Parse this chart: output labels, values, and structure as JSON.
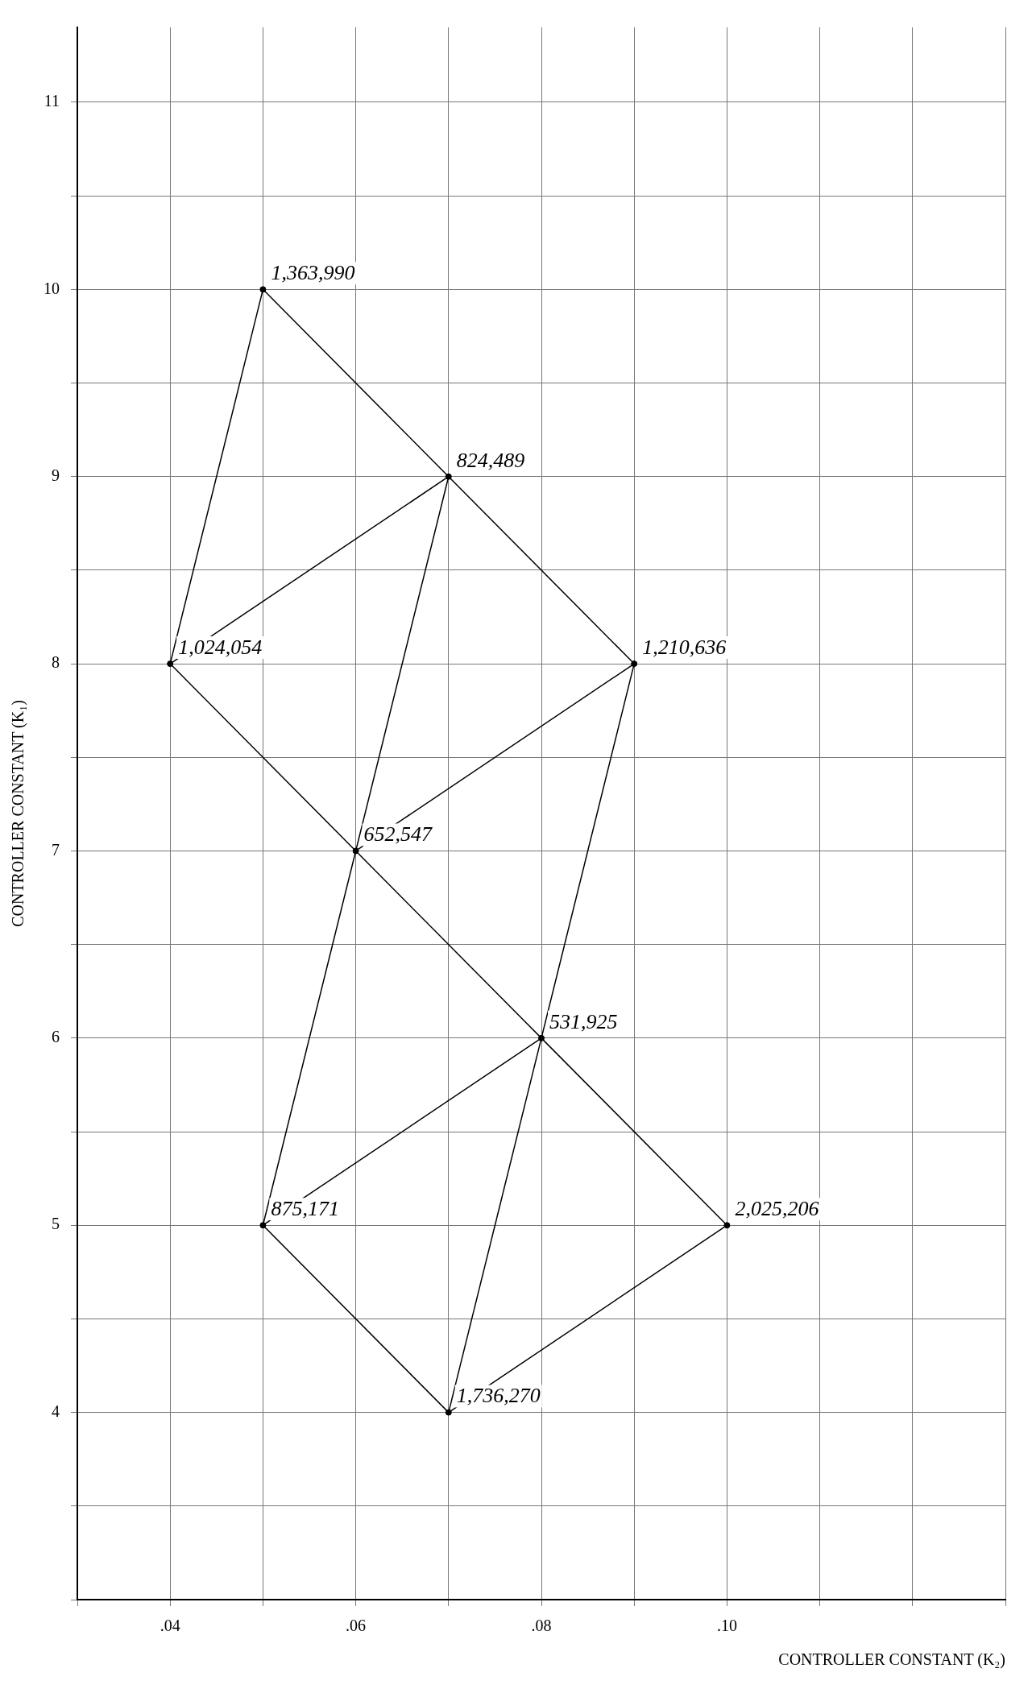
{
  "chart_data": {
    "type": "scatter",
    "xlabel": "CONTROLLER CONSTANT (K₂)",
    "ylabel": "CONTROLLER CONSTANT (K₁)",
    "xlim": [
      0.03,
      0.13
    ],
    "ylim": [
      3,
      11.4
    ],
    "xticks": [
      {
        "value": 0.03,
        "label": null
      },
      {
        "value": 0.04,
        "label": ".04"
      },
      {
        "value": 0.05,
        "label": null
      },
      {
        "value": 0.06,
        "label": ".06"
      },
      {
        "value": 0.07,
        "label": null
      },
      {
        "value": 0.08,
        "label": ".08"
      },
      {
        "value": 0.09,
        "label": null
      },
      {
        "value": 0.1,
        "label": ".10"
      },
      {
        "value": 0.11,
        "label": null
      },
      {
        "value": 0.12,
        "label": null
      },
      {
        "value": 0.13,
        "label": null
      }
    ],
    "yticks": [
      {
        "value": 3,
        "label": null
      },
      {
        "value": 3.5,
        "label": null
      },
      4,
      {
        "value": 4.5,
        "label": null
      },
      5,
      {
        "value": 5.5,
        "label": null
      },
      6,
      {
        "value": 6.5,
        "label": null
      },
      7,
      {
        "value": 7.5,
        "label": null
      },
      8,
      {
        "value": 8.5,
        "label": null
      },
      9,
      {
        "value": 9.5,
        "label": null
      },
      10,
      {
        "value": 10.5,
        "label": null
      },
      11
    ],
    "grid": true,
    "legend": false,
    "series": [
      {
        "type": "line",
        "color": "#000000",
        "marker": "none",
        "x": [
          0.04,
          0.05,
          0.07,
          0.04,
          0.06,
          0.07,
          0.09,
          0.06,
          0.08,
          0.09
        ],
        "values": [
          8,
          10,
          9,
          8,
          7,
          9,
          8,
          7,
          6,
          8
        ]
      },
      {
        "type": "line",
        "color": "#000000",
        "marker": "none",
        "x": [
          0.06,
          0.05,
          0.08,
          0.1,
          0.07,
          0.05
        ],
        "values": [
          7,
          5,
          6,
          5,
          4,
          5
        ]
      },
      {
        "type": "line",
        "color": "#000000",
        "marker": "none",
        "x": [
          0.07,
          0.08
        ],
        "values": [
          4,
          6
        ]
      },
      {
        "type": "scatter",
        "color": "#000000",
        "marker": "circle",
        "x": [
          0.05,
          0.07,
          0.04,
          0.09,
          0.06,
          0.08,
          0.05,
          0.1,
          0.07
        ],
        "values": [
          10,
          9,
          8,
          8,
          7,
          6,
          5,
          5,
          4
        ]
      }
    ],
    "annotations": [
      {
        "text": "1,363,990",
        "x": 0.05,
        "y": 10
      },
      {
        "text": "824,489",
        "x": 0.07,
        "y": 9
      },
      {
        "text": "1,024,054",
        "x": 0.04,
        "y": 8
      },
      {
        "text": "1,210,636",
        "x": 0.09,
        "y": 8
      },
      {
        "text": "652,547",
        "x": 0.06,
        "y": 7
      },
      {
        "text": "531,925",
        "x": 0.08,
        "y": 6
      },
      {
        "text": "875,171",
        "x": 0.05,
        "y": 5
      },
      {
        "text": "2,025,206",
        "x": 0.1,
        "y": 5
      },
      {
        "text": "1,736,270",
        "x": 0.07,
        "y": 4
      }
    ]
  }
}
